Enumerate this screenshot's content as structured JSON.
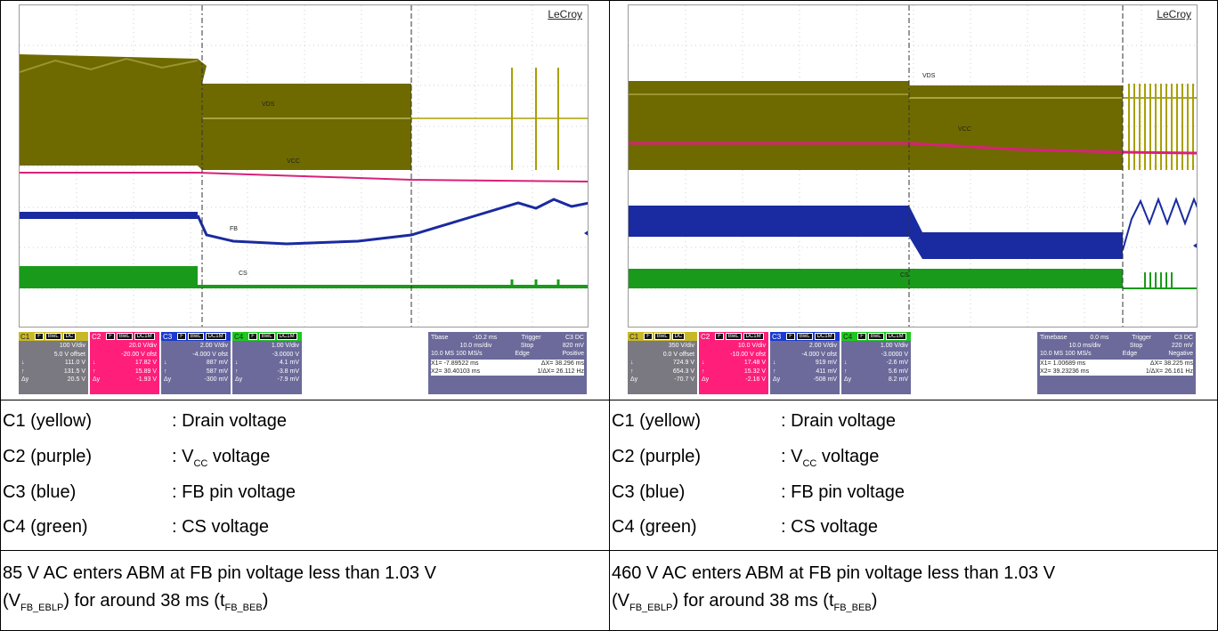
{
  "left": {
    "brand": "LeCroy",
    "trace_labels": {
      "vds": "VDS",
      "vcc": "VCC",
      "fb": "FB",
      "cs": "CS"
    },
    "channels": [
      {
        "name": "C1",
        "tags": [
          "F",
          "BwL",
          "DC"
        ],
        "rows": [
          [
            "",
            "100 V/div"
          ],
          [
            "",
            "5.0 V offset"
          ],
          [
            "↓",
            "111.0 V"
          ],
          [
            "↑",
            "131.5 V"
          ],
          [
            "Δy",
            "20.5 V"
          ]
        ],
        "color": "#7a7880"
      },
      {
        "name": "C2",
        "tags": [
          "F",
          "BwL",
          "DC1M"
        ],
        "rows": [
          [
            "",
            "20.0 V/div"
          ],
          [
            "",
            "-20.00 V ofst"
          ],
          [
            "↓",
            "17.82 V"
          ],
          [
            "↑",
            "15.89 V"
          ],
          [
            "Δy",
            "-1.93 V"
          ]
        ],
        "color": "#ff1e7a"
      },
      {
        "name": "C3",
        "tags": [
          "F",
          "BwL",
          "DC1M"
        ],
        "rows": [
          [
            "",
            "2.00 V/div"
          ],
          [
            "",
            "-4.000 V ofst"
          ],
          [
            "↓",
            "887 mV"
          ],
          [
            "↑",
            "587 mV"
          ],
          [
            "Δy",
            "-300 mV"
          ]
        ],
        "color": "#6b6a9a"
      },
      {
        "name": "C4",
        "tags": [
          "F",
          "BwL",
          "DC1M"
        ],
        "rows": [
          [
            "",
            "1.00 V/div"
          ],
          [
            "",
            "-3.0000 V"
          ],
          [
            "↓",
            "4.1 mV"
          ],
          [
            "↑",
            "-3.8 mV"
          ],
          [
            "Δy",
            "-7.9 mV"
          ]
        ],
        "color": "#6b6a9a"
      }
    ],
    "timebase": {
      "label": "Tbase",
      "value": "-10.2 ms",
      "div": "10.0 ms/div",
      "rate": "10.0 MS  100 MS/s"
    },
    "trigger": {
      "label": "Trigger",
      "ch": "C3 DC",
      "mode": "Stop",
      "level": "820 mV",
      "type": "Edge",
      "slope": "Positive"
    },
    "cursor": {
      "x1": "X1=  -7.89522 ms",
      "dx": "ΔX=  38.296 ms",
      "x2": "X2=  30.40103 ms",
      "inv": "1/ΔX=  26.112 Hz"
    }
  },
  "right": {
    "brand": "LeCroy",
    "trace_labels": {
      "vds": "VDS",
      "vcc": "VCC",
      "cs": "CS"
    },
    "channels": [
      {
        "name": "C1",
        "tags": [
          "F",
          "BwL",
          "DC"
        ],
        "rows": [
          [
            "",
            "350 V/div"
          ],
          [
            "",
            "0.0 V offset"
          ],
          [
            "↓",
            "724.9 V"
          ],
          [
            "↑",
            "654.3 V"
          ],
          [
            "Δy",
            "-70.7 V"
          ]
        ],
        "color": "#7a7880"
      },
      {
        "name": "C2",
        "tags": [
          "F",
          "BwL",
          "DC1M"
        ],
        "rows": [
          [
            "",
            "10.0 V/div"
          ],
          [
            "",
            "-10.00 V ofst"
          ],
          [
            "↓",
            "17.48 V"
          ],
          [
            "↑",
            "15.32 V"
          ],
          [
            "Δy",
            "-2.16 V"
          ]
        ],
        "color": "#ff1e7a"
      },
      {
        "name": "C3",
        "tags": [
          "F",
          "BwL",
          "DC1M"
        ],
        "rows": [
          [
            "",
            "2.00 V/div"
          ],
          [
            "",
            "-4.000 V ofst"
          ],
          [
            "↓",
            "919 mV"
          ],
          [
            "↑",
            "411 mV"
          ],
          [
            "Δy",
            "-508 mV"
          ]
        ],
        "color": "#6b6a9a"
      },
      {
        "name": "C4",
        "tags": [
          "F",
          "BwL",
          "DC1M"
        ],
        "rows": [
          [
            "",
            "1.00 V/div"
          ],
          [
            "",
            "-3.0000 V"
          ],
          [
            "↓",
            "-2.6 mV"
          ],
          [
            "↑",
            "5.6 mV"
          ],
          [
            "Δy",
            "8.2 mV"
          ]
        ],
        "color": "#6b6a9a"
      }
    ],
    "timebase": {
      "label": "Timebase",
      "value": "0.0 ms",
      "div": "10.0 ms/div",
      "rate": "10.0 MS  100 MS/s"
    },
    "trigger": {
      "label": "Trigger",
      "ch": "C3 DC",
      "mode": "Stop",
      "level": "220 mV",
      "type": "Edge",
      "slope": "Negative"
    },
    "cursor": {
      "x1": "X1=  1.00689 ms",
      "dx": "ΔX=  38.225 ms",
      "x2": "X2=  39.23236 ms",
      "inv": "1/ΔX=  26.161 Hz"
    }
  },
  "legend": [
    {
      "key": "C1 (yellow)",
      "val": ": Drain voltage"
    },
    {
      "key": "C2 (purple)",
      "val_pre": ": V",
      "val_sub": "CC",
      "val_post": " voltage"
    },
    {
      "key": "C3 (blue)",
      "val": ": FB pin voltage"
    },
    {
      "key": "C4 (green)",
      "val": ": CS voltage"
    }
  ],
  "notes": {
    "left_line1": "85 V AC enters ABM at FB pin voltage less than 1.03 V",
    "right_line1": "460 V AC enters ABM at FB pin voltage less than 1.03 V",
    "line2_a": "(V",
    "line2_sub1": "FB_EBLP",
    "line2_b": ") for around 38 ms (t",
    "line2_sub2": "FB_BEB",
    "line2_c": ")"
  },
  "colors": {
    "yellow": "#6e6a00",
    "vcc": "#d8217a",
    "blue": "#1a2aa0",
    "green": "#1a9a1a"
  }
}
